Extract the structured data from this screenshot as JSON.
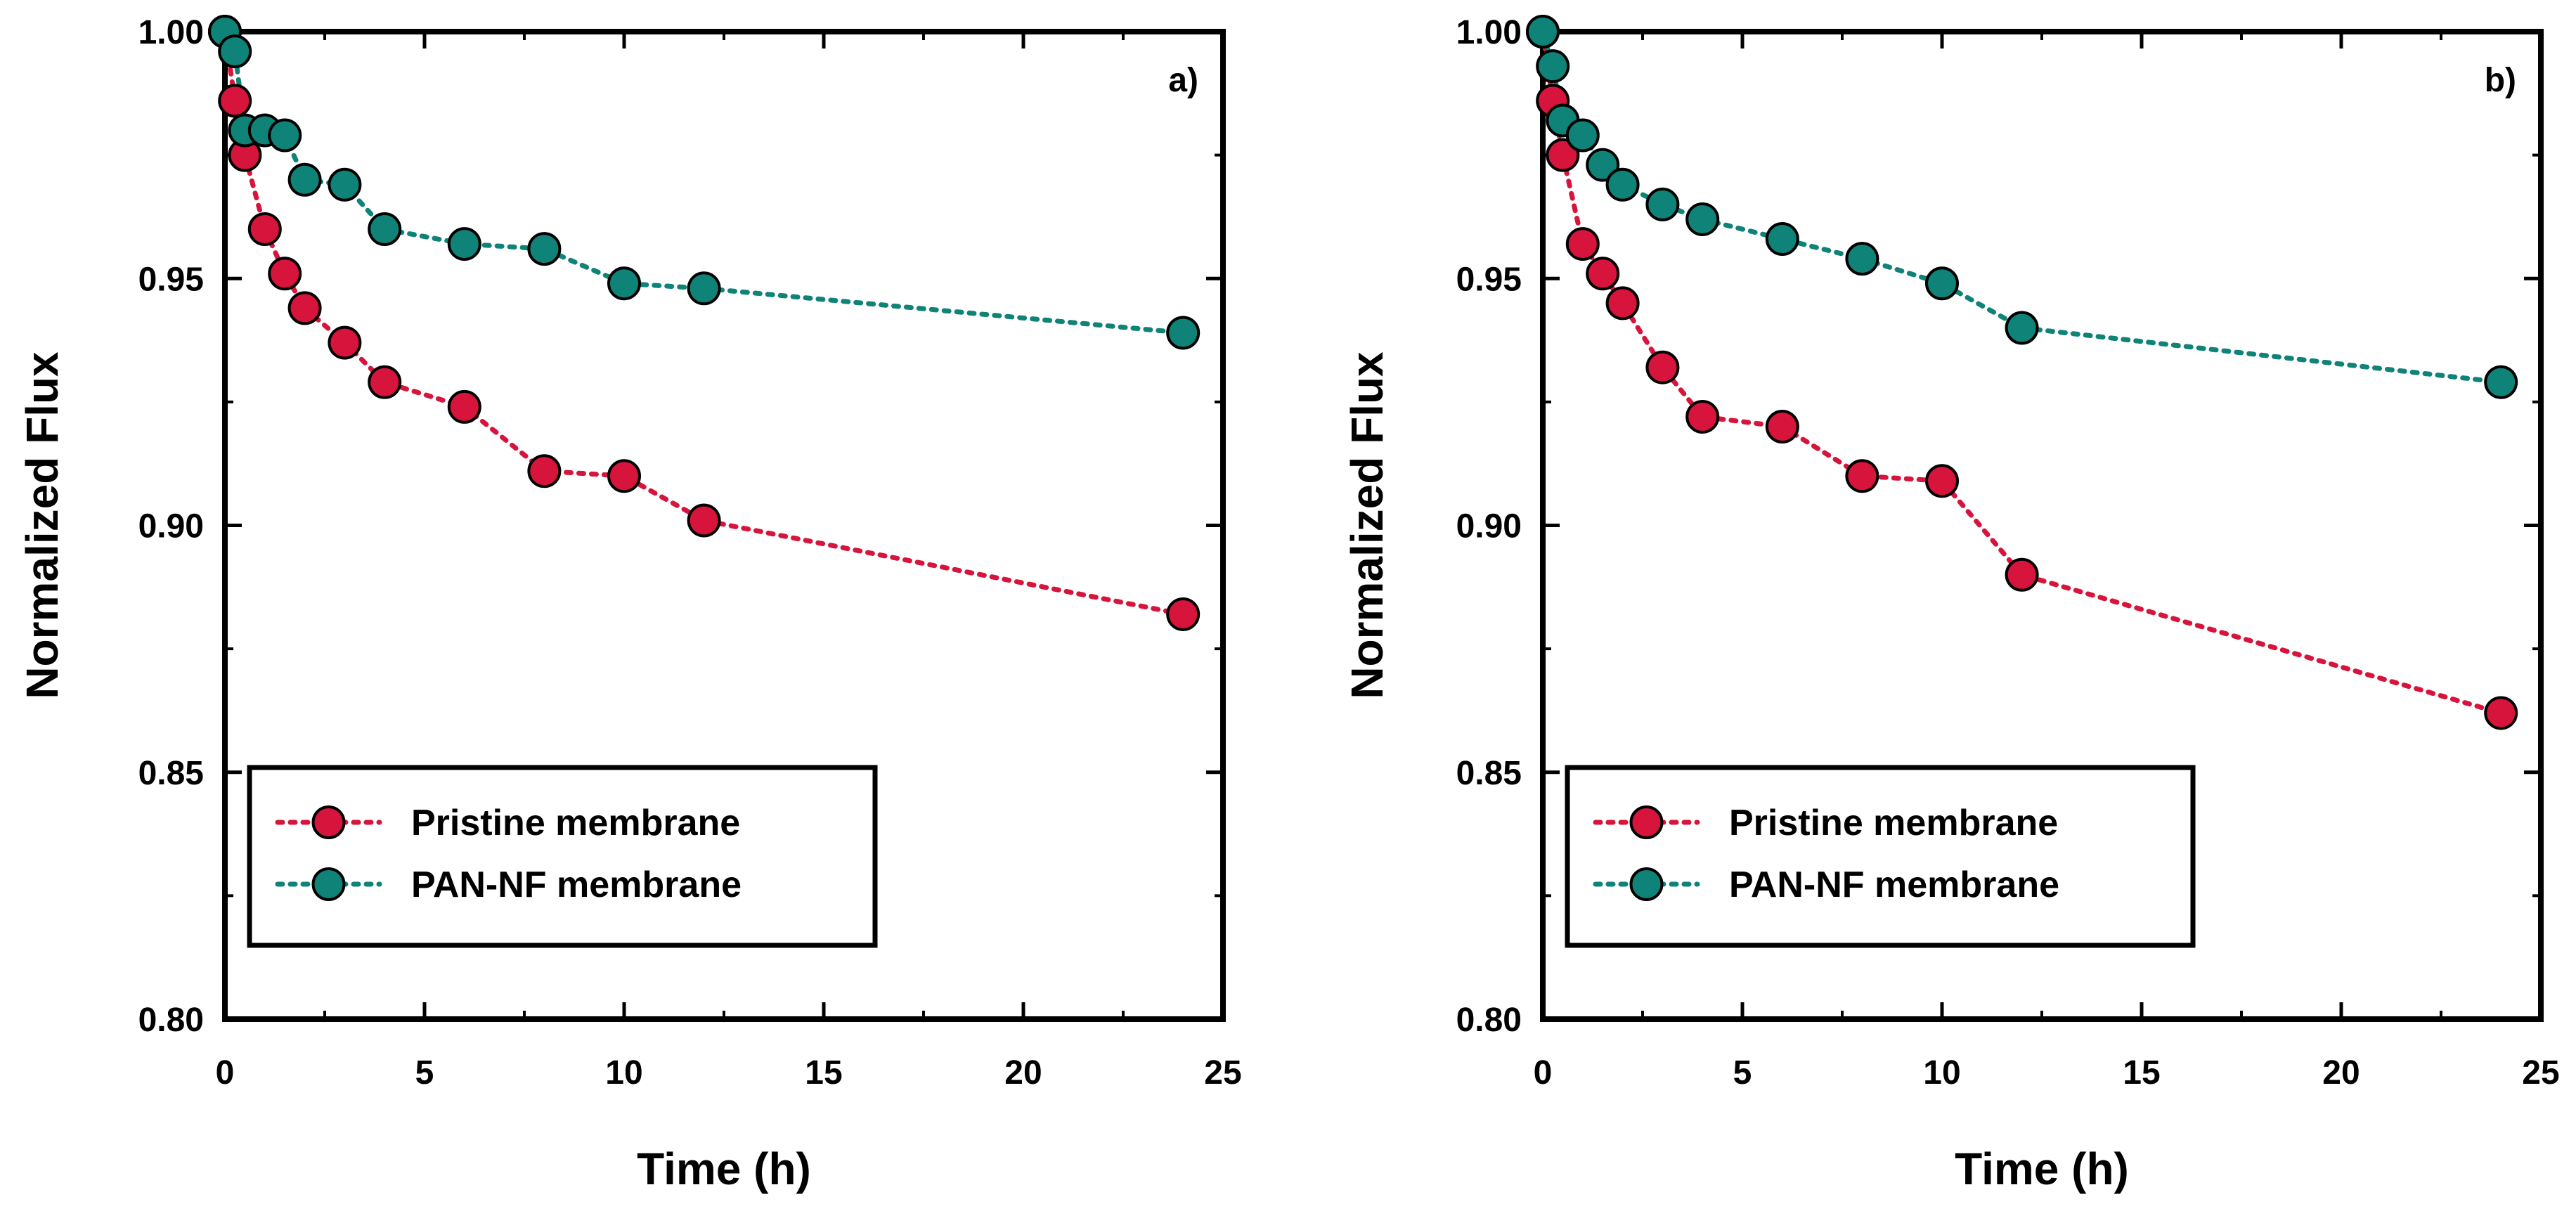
{
  "chart_data": [
    {
      "type": "line",
      "panel_label": "a)",
      "xlabel": "Time (h)",
      "ylabel": "Normalized Flux",
      "xlim": [
        0,
        25
      ],
      "ylim": [
        0.8,
        1.0
      ],
      "xticks": [
        "0",
        "5",
        "10",
        "15",
        "20",
        "25"
      ],
      "yticks": [
        "0.80",
        "0.85",
        "0.90",
        "0.95",
        "1.00"
      ],
      "legend_position": "bottom-left",
      "series": [
        {
          "name": "Pristine membrane",
          "color": "#d7143c",
          "x": [
            0,
            0.25,
            0.5,
            1,
            1.5,
            2,
            3,
            4,
            6,
            8,
            10,
            12,
            24
          ],
          "y": [
            1.0,
            0.986,
            0.975,
            0.96,
            0.951,
            0.944,
            0.937,
            0.929,
            0.924,
            0.911,
            0.91,
            0.901,
            0.882
          ]
        },
        {
          "name": "PAN-NF membrane",
          "color": "#0f8378",
          "x": [
            0,
            0.25,
            0.5,
            1,
            1.5,
            2,
            3,
            4,
            6,
            8,
            10,
            12,
            24
          ],
          "y": [
            1.0,
            0.996,
            0.98,
            0.98,
            0.979,
            0.97,
            0.969,
            0.96,
            0.957,
            0.956,
            0.949,
            0.948,
            0.939
          ]
        }
      ]
    },
    {
      "type": "line",
      "panel_label": "b)",
      "xlabel": "Time (h)",
      "ylabel": "Normalized Flux",
      "xlim": [
        0,
        25
      ],
      "ylim": [
        0.8,
        1.0
      ],
      "xticks": [
        "0",
        "5",
        "10",
        "15",
        "20",
        "25"
      ],
      "yticks": [
        "0.80",
        "0.85",
        "0.90",
        "0.95",
        "1.00"
      ],
      "legend_position": "bottom-left",
      "series": [
        {
          "name": "Pristine membrane",
          "color": "#d7143c",
          "x": [
            0,
            0.25,
            0.5,
            1,
            1.5,
            2,
            3,
            4,
            6,
            8,
            10,
            12,
            24
          ],
          "y": [
            1.0,
            0.986,
            0.975,
            0.957,
            0.951,
            0.945,
            0.932,
            0.922,
            0.92,
            0.91,
            0.909,
            0.89,
            0.862
          ]
        },
        {
          "name": "PAN-NF membrane",
          "color": "#0f8378",
          "x": [
            0,
            0.25,
            0.5,
            1,
            1.5,
            2,
            3,
            4,
            6,
            8,
            10,
            12,
            24
          ],
          "y": [
            1.0,
            0.993,
            0.982,
            0.979,
            0.973,
            0.969,
            0.965,
            0.962,
            0.958,
            0.954,
            0.949,
            0.94,
            0.929
          ]
        }
      ]
    }
  ]
}
